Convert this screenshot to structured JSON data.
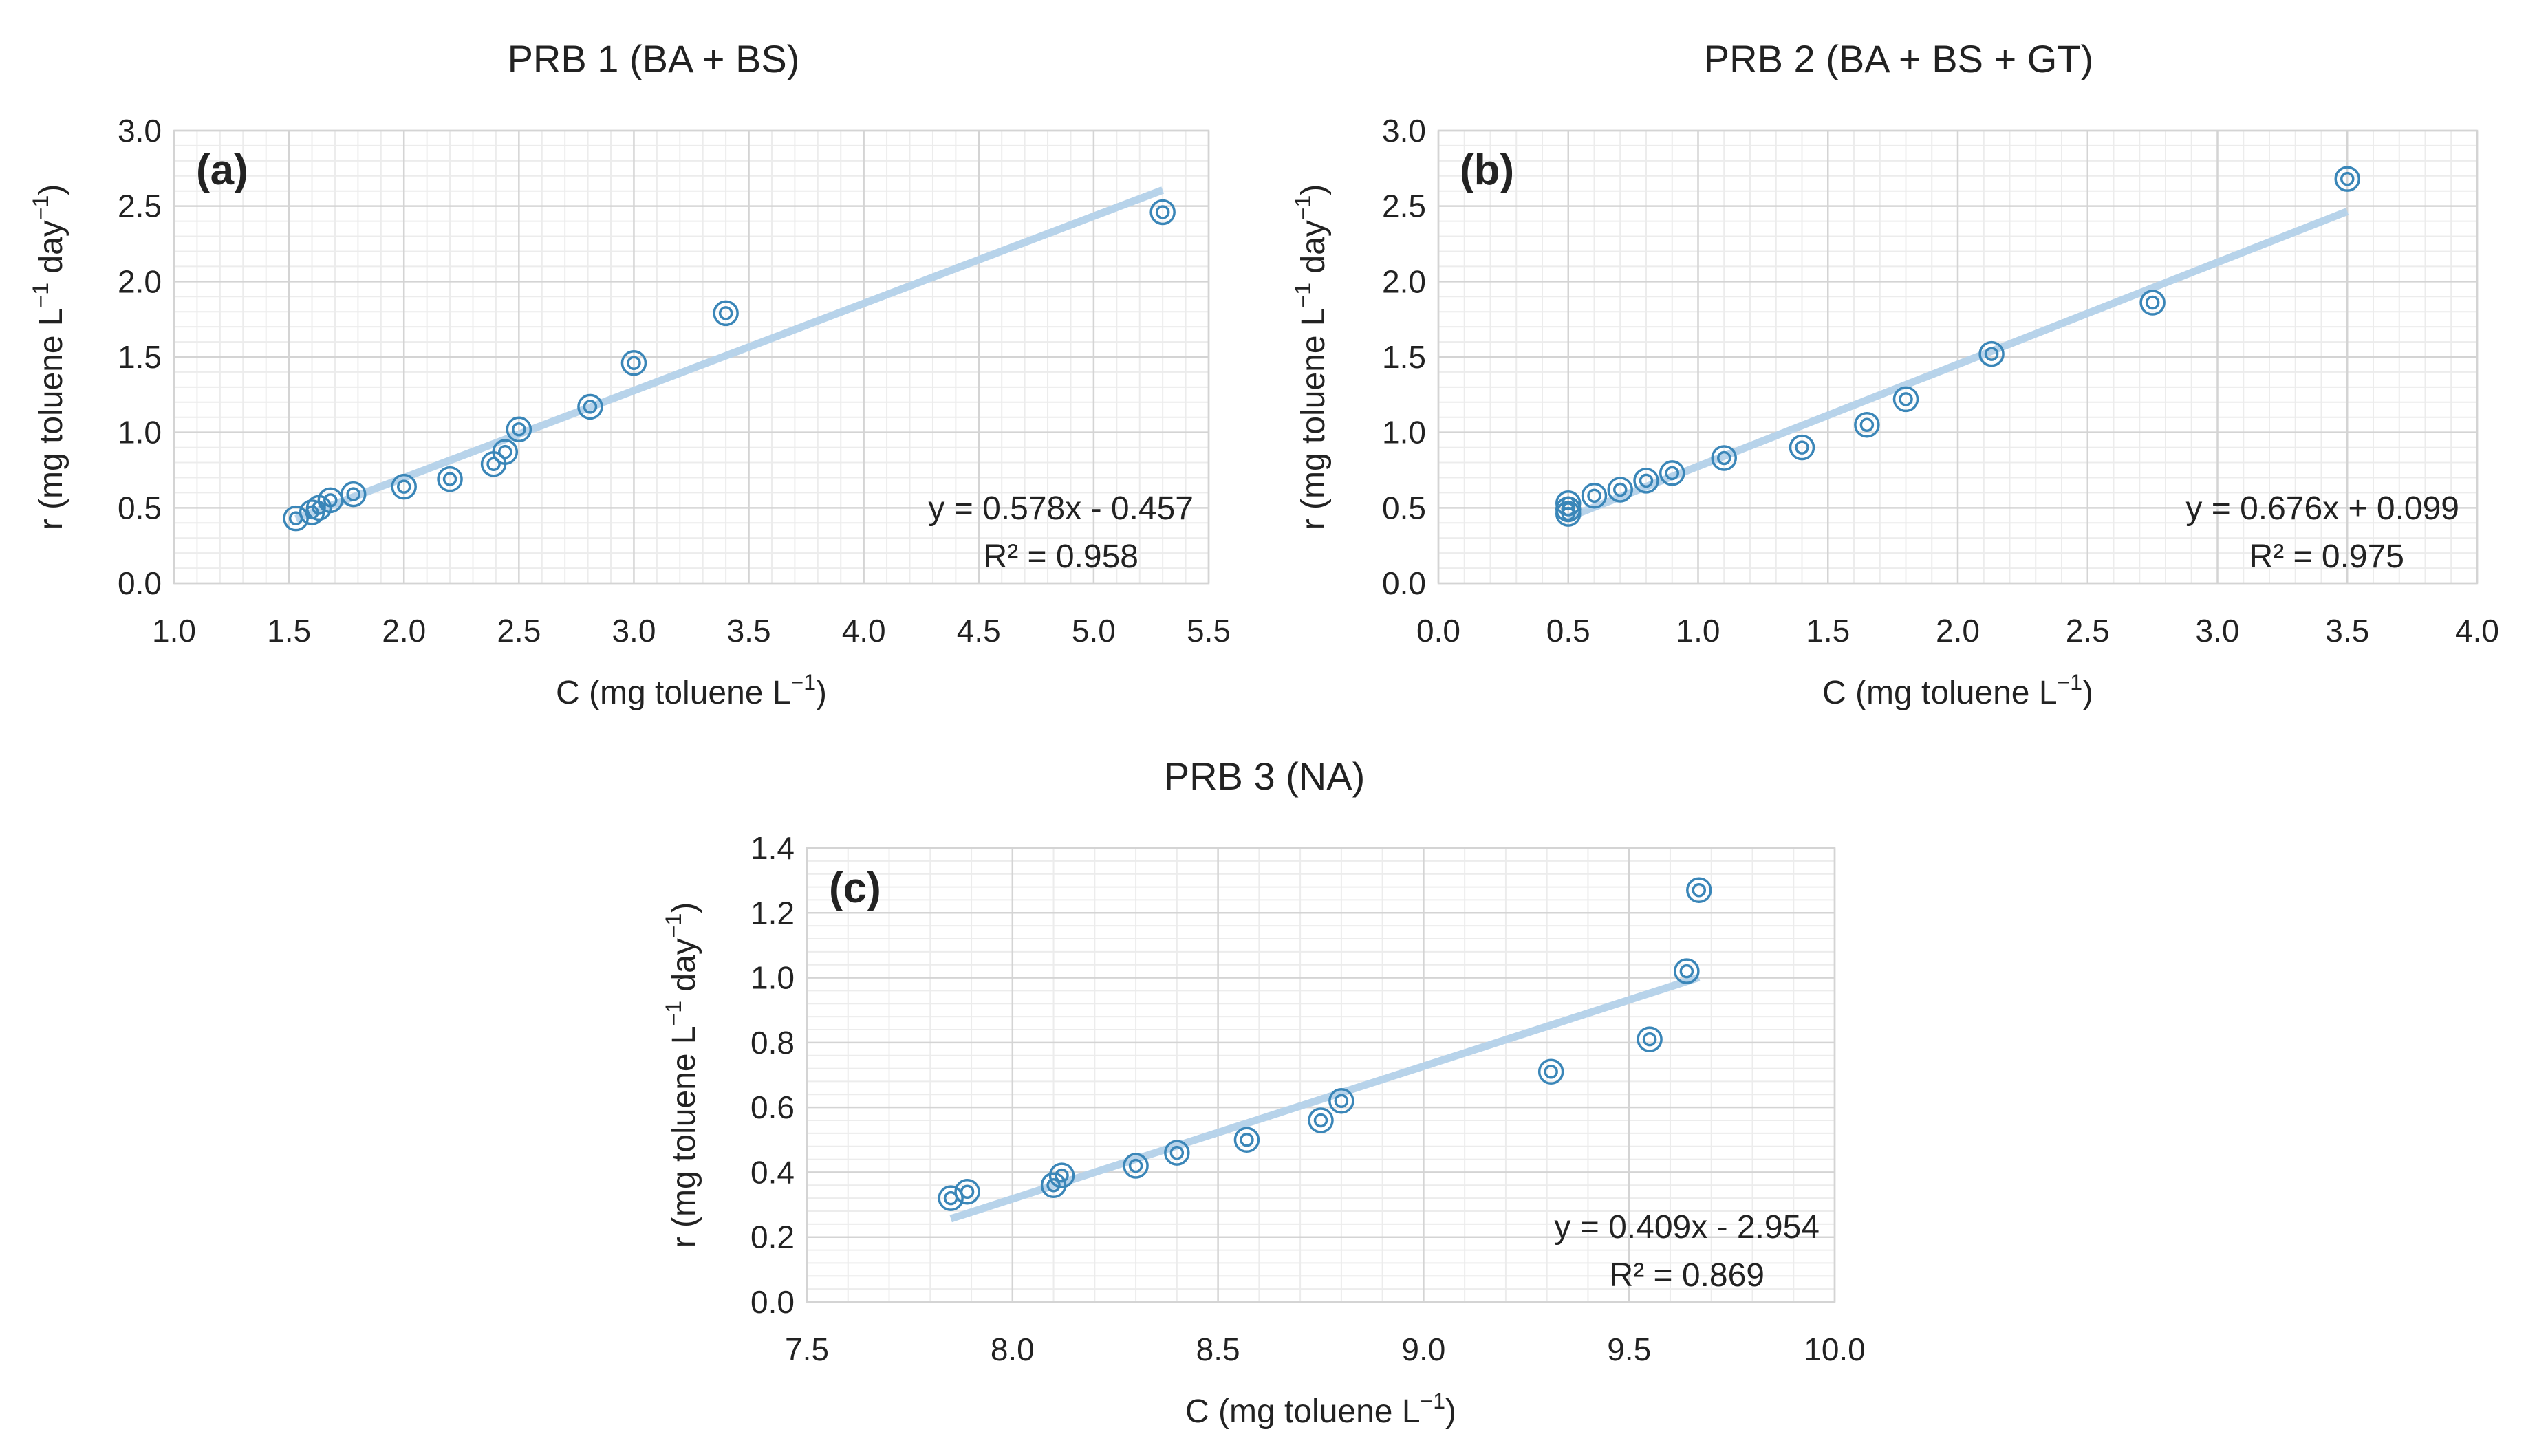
{
  "colors": {
    "marker": "#3a86b8",
    "trendline": "#b7d3ea",
    "grid_major": "#d4d4d4",
    "grid_minor": "#ececec",
    "text": "#222222"
  },
  "chart_data": [
    {
      "id": "a",
      "type": "scatter",
      "title": "PRB 1 (BA + BS)",
      "panel_label": "(a)",
      "xlabel": "C (mg toluene L",
      "xlabel_sup": "−1",
      "xlabel_end": ")",
      "ylabel": "r (mg toluene L",
      "ylabel_sup1": "−1",
      "ylabel_mid": " day",
      "ylabel_sup2": "−1",
      "ylabel_end": ")",
      "xlim": [
        1.0,
        5.5
      ],
      "ylim": [
        0.0,
        3.0
      ],
      "xticks": [
        "1.0",
        "1.5",
        "2.0",
        "2.5",
        "3.0",
        "3.5",
        "4.0",
        "4.5",
        "5.0",
        "5.5"
      ],
      "yticks": [
        "0.0",
        "0.5",
        "1.0",
        "1.5",
        "2.0",
        "2.5",
        "3.0"
      ],
      "x": [
        1.53,
        1.6,
        1.63,
        1.68,
        1.78,
        2.0,
        2.2,
        2.39,
        2.44,
        2.5,
        2.81,
        3.0,
        3.4,
        5.3
      ],
      "y": [
        0.43,
        0.47,
        0.5,
        0.55,
        0.59,
        0.64,
        0.69,
        0.79,
        0.87,
        1.02,
        1.17,
        1.46,
        1.79,
        2.46
      ],
      "trendline": {
        "slope": 0.578,
        "intercept": -0.457,
        "x_range": [
          1.53,
          5.3
        ]
      },
      "equation": "y = 0.578x - 0.457",
      "r2": "R² = 0.958",
      "grid": true
    },
    {
      "id": "b",
      "type": "scatter",
      "title": "PRB 2 (BA + BS + GT)",
      "panel_label": "(b)",
      "xlabel": "C (mg toluene L",
      "xlabel_sup": "−1",
      "xlabel_end": ")",
      "ylabel": "r (mg toluene L",
      "ylabel_sup1": "−1",
      "ylabel_mid": " day",
      "ylabel_sup2": "−1",
      "ylabel_end": ")",
      "xlim": [
        0.0,
        4.0
      ],
      "ylim": [
        0.0,
        3.0
      ],
      "xticks": [
        "0.0",
        "0.5",
        "1.0",
        "1.5",
        "2.0",
        "2.5",
        "3.0",
        "3.5",
        "4.0"
      ],
      "yticks": [
        "0.0",
        "0.5",
        "1.0",
        "1.5",
        "2.0",
        "2.5",
        "3.0"
      ],
      "x": [
        0.5,
        0.5,
        0.5,
        0.6,
        0.7,
        0.8,
        0.9,
        1.1,
        1.4,
        1.65,
        1.8,
        2.13,
        2.75,
        3.5
      ],
      "y": [
        0.46,
        0.49,
        0.53,
        0.58,
        0.62,
        0.68,
        0.73,
        0.83,
        0.9,
        1.05,
        1.22,
        1.52,
        1.86,
        2.68
      ],
      "trendline": {
        "slope": 0.676,
        "intercept": 0.099,
        "x_range": [
          0.5,
          3.5
        ]
      },
      "equation": "y = 0.676x + 0.099",
      "r2": "R² = 0.975",
      "grid": true
    },
    {
      "id": "c",
      "type": "scatter",
      "title": "PRB 3 (NA)",
      "panel_label": "(c)",
      "xlabel": "C (mg toluene L",
      "xlabel_sup": "−1",
      "xlabel_end": ")",
      "ylabel": "r (mg toluene L",
      "ylabel_sup1": "−1",
      "ylabel_mid": " day",
      "ylabel_sup2": "−1",
      "ylabel_end": ")",
      "xlim": [
        7.5,
        10.0
      ],
      "ylim": [
        0.0,
        1.4
      ],
      "xticks": [
        "7.5",
        "8.0",
        "8.5",
        "9.0",
        "9.5",
        "10.0"
      ],
      "yticks": [
        "0.0",
        "0.2",
        "0.4",
        "0.6",
        "0.8",
        "1.0",
        "1.2",
        "1.4"
      ],
      "x": [
        7.85,
        7.89,
        8.1,
        8.12,
        8.3,
        8.4,
        8.57,
        8.75,
        8.8,
        9.31,
        9.55,
        9.64,
        9.67
      ],
      "y": [
        0.32,
        0.34,
        0.36,
        0.39,
        0.42,
        0.46,
        0.5,
        0.56,
        0.62,
        0.71,
        0.81,
        1.02,
        1.27
      ],
      "trendline": {
        "slope": 0.409,
        "intercept": -2.954,
        "x_range": [
          7.85,
          9.67
        ]
      },
      "equation": "y = 0.409x - 2.954",
      "r2": "R² = 0.869",
      "grid": true
    }
  ]
}
